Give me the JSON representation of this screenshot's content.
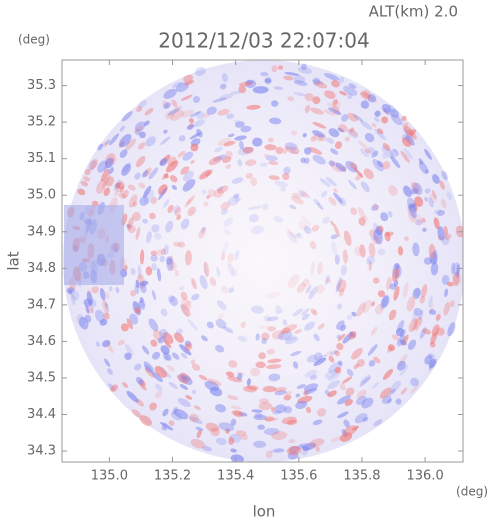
{
  "chart_data": {
    "type": "radar-map",
    "title": "2012/12/03 22:07:04",
    "altitude_label": "ALT(km) 2.0",
    "y_unit": "(deg)",
    "x_unit": "(deg)",
    "x_label": "lon",
    "y_label": "lat",
    "xlim": [
      134.85,
      136.12
    ],
    "ylim": [
      34.27,
      35.37
    ],
    "xticks": [
      {
        "value": 135,
        "label": "135.0"
      },
      135.2,
      135.4,
      135.6,
      135.8,
      {
        "value": 136,
        "label": "136.0"
      }
    ],
    "yticks": [
      34.3,
      34.4,
      34.5,
      34.6,
      34.7,
      34.8,
      34.9,
      {
        "value": 35,
        "label": "35.0"
      },
      35.1,
      35.2,
      35.3
    ]
  }
}
